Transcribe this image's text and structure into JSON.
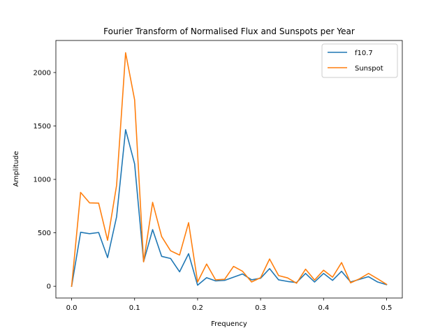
{
  "chart_data": {
    "type": "line",
    "title": "Fourier Transform of Normalised Flux and Sunspots per Year",
    "xlabel": "Frequency",
    "ylabel": "Amplitude",
    "xlim": [
      -0.025,
      0.525
    ],
    "ylim": [
      -110,
      2300
    ],
    "xticks": [
      0.0,
      0.1,
      0.2,
      0.3,
      0.4,
      0.5
    ],
    "xtick_labels": [
      "0.0",
      "0.1",
      "0.2",
      "0.3",
      "0.4",
      "0.5"
    ],
    "yticks": [
      0,
      500,
      1000,
      1500,
      2000
    ],
    "ytick_labels": [
      "0",
      "500",
      "1000",
      "1500",
      "2000"
    ],
    "grid": false,
    "legend_position": "top-right",
    "x": [
      0.0,
      0.0143,
      0.0286,
      0.0429,
      0.0571,
      0.0714,
      0.0857,
      0.1,
      0.1143,
      0.1286,
      0.1429,
      0.1571,
      0.1714,
      0.1857,
      0.2,
      0.2143,
      0.2286,
      0.2429,
      0.2571,
      0.2714,
      0.2857,
      0.3,
      0.3143,
      0.3286,
      0.3429,
      0.3571,
      0.3714,
      0.3857,
      0.4,
      0.4143,
      0.4286,
      0.4429,
      0.4571,
      0.4714,
      0.4857,
      0.5
    ],
    "series": [
      {
        "name": "f10.7",
        "color": "#1f77b4",
        "values": [
          0,
          505,
          492,
          503,
          268,
          650,
          1465,
          1145,
          230,
          530,
          280,
          260,
          135,
          305,
          10,
          80,
          50,
          55,
          85,
          115,
          60,
          75,
          165,
          60,
          45,
          35,
          120,
          40,
          120,
          55,
          140,
          40,
          65,
          90,
          40,
          15
        ]
      },
      {
        "name": "Sunspot",
        "color": "#ff7f0e",
        "values": [
          0,
          878,
          780,
          778,
          430,
          945,
          2185,
          1745,
          228,
          785,
          465,
          332,
          292,
          595,
          40,
          208,
          60,
          65,
          186,
          140,
          40,
          80,
          255,
          100,
          78,
          28,
          160,
          58,
          150,
          85,
          222,
          32,
          70,
          120,
          70,
          18
        ]
      }
    ]
  }
}
